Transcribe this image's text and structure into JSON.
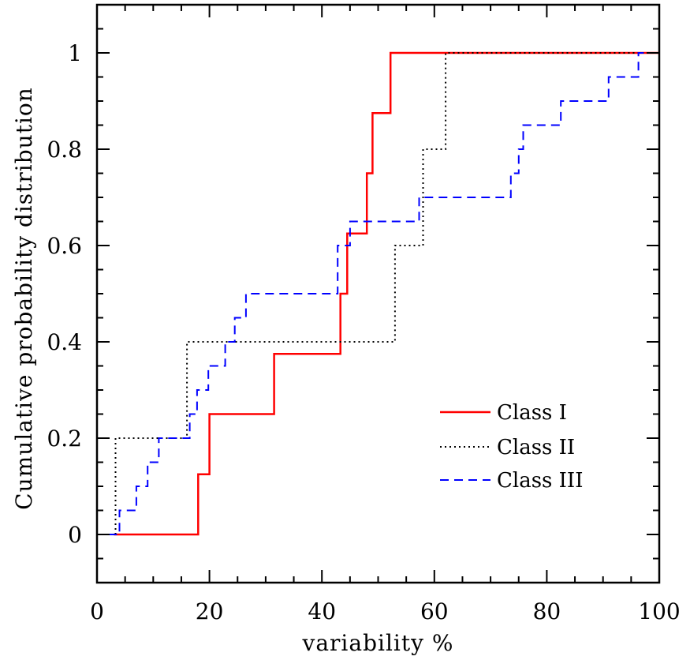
{
  "chart_data": {
    "type": "line",
    "line_shape": "step",
    "xlabel": "variability %",
    "ylabel": "Cumulative probability distribution",
    "xlim": [
      0,
      100
    ],
    "ylim": [
      -0.1,
      1.1
    ],
    "x_ticks": [
      0,
      20,
      40,
      60,
      80,
      100
    ],
    "y_ticks": [
      0,
      0.2,
      0.4,
      0.6,
      0.8,
      1
    ],
    "x_tick_labels": [
      "0",
      "20",
      "40",
      "60",
      "80",
      "100"
    ],
    "y_tick_labels": [
      "0",
      "0.2",
      "0.4",
      "0.6",
      "0.8",
      "1"
    ],
    "legend_position": "bottom-right",
    "series": [
      {
        "name": "Class I",
        "color": "#ff0000",
        "dash": "solid",
        "points": [
          [
            3,
            0
          ],
          [
            18,
            0
          ],
          [
            18,
            0.125
          ],
          [
            20,
            0.125
          ],
          [
            20,
            0.25
          ],
          [
            31.5,
            0.25
          ],
          [
            31.5,
            0.375
          ],
          [
            43.3,
            0.375
          ],
          [
            43.3,
            0.5
          ],
          [
            44.5,
            0.5
          ],
          [
            44.5,
            0.625
          ],
          [
            48,
            0.625
          ],
          [
            48,
            0.75
          ],
          [
            49,
            0.75
          ],
          [
            49,
            0.875
          ],
          [
            52.2,
            0.875
          ],
          [
            52.2,
            1.0
          ],
          [
            100,
            1.0
          ]
        ]
      },
      {
        "name": "Class II",
        "color": "#000000",
        "dash": "dotted",
        "points": [
          [
            3.3,
            0
          ],
          [
            3.3,
            0.2
          ],
          [
            16,
            0.2
          ],
          [
            16,
            0.4
          ],
          [
            53,
            0.4
          ],
          [
            53,
            0.6
          ],
          [
            58,
            0.6
          ],
          [
            58,
            0.8
          ],
          [
            62,
            0.8
          ],
          [
            62,
            1.0
          ],
          [
            100,
            1.0
          ]
        ]
      },
      {
        "name": "Class III",
        "color": "#0000ff",
        "dash": "dashed",
        "points": [
          [
            2,
            0
          ],
          [
            4,
            0
          ],
          [
            4,
            0.05
          ],
          [
            7,
            0.05
          ],
          [
            7,
            0.1
          ],
          [
            9,
            0.1
          ],
          [
            9,
            0.15
          ],
          [
            11,
            0.15
          ],
          [
            11,
            0.2
          ],
          [
            16.5,
            0.2
          ],
          [
            16.5,
            0.25
          ],
          [
            17.8,
            0.25
          ],
          [
            17.8,
            0.3
          ],
          [
            19.8,
            0.3
          ],
          [
            19.8,
            0.35
          ],
          [
            22.8,
            0.35
          ],
          [
            22.8,
            0.4
          ],
          [
            24.5,
            0.4
          ],
          [
            24.5,
            0.45
          ],
          [
            26.5,
            0.45
          ],
          [
            26.5,
            0.5
          ],
          [
            42.8,
            0.5
          ],
          [
            42.8,
            0.6
          ],
          [
            45,
            0.6
          ],
          [
            45,
            0.65
          ],
          [
            57.3,
            0.65
          ],
          [
            57.3,
            0.7
          ],
          [
            73.6,
            0.7
          ],
          [
            73.6,
            0.75
          ],
          [
            75,
            0.75
          ],
          [
            75,
            0.8
          ],
          [
            75.8,
            0.8
          ],
          [
            75.8,
            0.85
          ],
          [
            82.5,
            0.85
          ],
          [
            82.5,
            0.9
          ],
          [
            91,
            0.9
          ],
          [
            91,
            0.95
          ],
          [
            96.3,
            0.95
          ],
          [
            96.3,
            1.0
          ],
          [
            100,
            1.0
          ]
        ]
      }
    ]
  }
}
